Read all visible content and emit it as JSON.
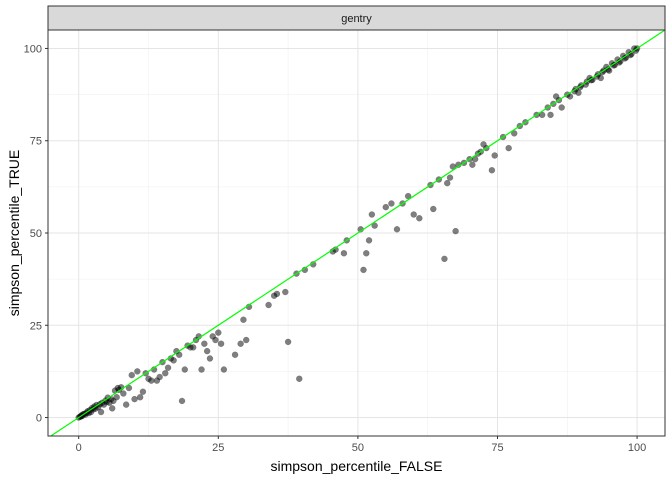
{
  "chart_data": {
    "type": "scatter",
    "facet_label": "gentry",
    "xlabel": "simpson_percentile_FALSE",
    "ylabel": "simpson_percentile_TRUE",
    "xlim": [
      -5.5,
      105
    ],
    "ylim": [
      -5,
      105
    ],
    "x_ticks": [
      0,
      25,
      50,
      75,
      100
    ],
    "y_ticks": [
      0,
      25,
      50,
      75,
      100
    ],
    "x_tick_labels": [
      "0",
      "25",
      "50",
      "75",
      "100"
    ],
    "y_tick_labels": [
      "0",
      "25",
      "50",
      "75",
      "100"
    ],
    "grid": true,
    "reference_line": {
      "slope": 1,
      "intercept": 0,
      "color": "#00ff00"
    },
    "point_color": "#000000",
    "point_opacity": 0.5,
    "points": [
      [
        0,
        0
      ],
      [
        0.2,
        0.2
      ],
      [
        0.4,
        0.3
      ],
      [
        0.5,
        0.6
      ],
      [
        0.6,
        0.4
      ],
      [
        0.8,
        0.9
      ],
      [
        1,
        1
      ],
      [
        1.2,
        0.8
      ],
      [
        1.4,
        1.3
      ],
      [
        1.6,
        1.7
      ],
      [
        1.8,
        1.2
      ],
      [
        2,
        2
      ],
      [
        2.2,
        1.5
      ],
      [
        2.4,
        2.6
      ],
      [
        2.6,
        2.2
      ],
      [
        2.8,
        3
      ],
      [
        3,
        2.4
      ],
      [
        3.2,
        3.4
      ],
      [
        3.5,
        2.8
      ],
      [
        3.8,
        3.6
      ],
      [
        4,
        1.5
      ],
      [
        4.2,
        4
      ],
      [
        4.5,
        3.5
      ],
      [
        4.8,
        4.6
      ],
      [
        5,
        4.2
      ],
      [
        5.2,
        5.4
      ],
      [
        5.5,
        4
      ],
      [
        5.8,
        5
      ],
      [
        6,
        2.5
      ],
      [
        6.2,
        4.5
      ],
      [
        6.5,
        7.3
      ],
      [
        6.8,
        5.5
      ],
      [
        7,
        8
      ],
      [
        7.2,
        7.5
      ],
      [
        7.6,
        8.2
      ],
      [
        8,
        6.5
      ],
      [
        8.5,
        3.5
      ],
      [
        9,
        8
      ],
      [
        9.5,
        11.5
      ],
      [
        10,
        5
      ],
      [
        10.5,
        12.5
      ],
      [
        11,
        5.5
      ],
      [
        11.5,
        7
      ],
      [
        12,
        12
      ],
      [
        12.5,
        10.5
      ],
      [
        13,
        10
      ],
      [
        13.5,
        13
      ],
      [
        14,
        10
      ],
      [
        14.5,
        11
      ],
      [
        15,
        15
      ],
      [
        15.5,
        12
      ],
      [
        16,
        13.5
      ],
      [
        16.5,
        16
      ],
      [
        17,
        15.5
      ],
      [
        17.5,
        18
      ],
      [
        18,
        17
      ],
      [
        18.5,
        4.5
      ],
      [
        19,
        13
      ],
      [
        19.5,
        19.5
      ],
      [
        20,
        19
      ],
      [
        20.5,
        19
      ],
      [
        21,
        21
      ],
      [
        21.5,
        22
      ],
      [
        22,
        13
      ],
      [
        22.5,
        20
      ],
      [
        23,
        18
      ],
      [
        23.5,
        16
      ],
      [
        24,
        22
      ],
      [
        24.5,
        21
      ],
      [
        25,
        23
      ],
      [
        25.5,
        20
      ],
      [
        26,
        13
      ],
      [
        28,
        17
      ],
      [
        29,
        20
      ],
      [
        29.5,
        26.5
      ],
      [
        30,
        21
      ],
      [
        30.5,
        30
      ],
      [
        34,
        30.5
      ],
      [
        35,
        33
      ],
      [
        35.5,
        33.5
      ],
      [
        37,
        34
      ],
      [
        37.5,
        20.5
      ],
      [
        39,
        39
      ],
      [
        39.5,
        10.5
      ],
      [
        40.5,
        40
      ],
      [
        42,
        41.5
      ],
      [
        45.5,
        45
      ],
      [
        46,
        45.5
      ],
      [
        47.5,
        44.5
      ],
      [
        48,
        48
      ],
      [
        50.5,
        51
      ],
      [
        51,
        40
      ],
      [
        51.5,
        44.5
      ],
      [
        52,
        48
      ],
      [
        52.5,
        55
      ],
      [
        53,
        52
      ],
      [
        55,
        57
      ],
      [
        56,
        58
      ],
      [
        57,
        51
      ],
      [
        58,
        58
      ],
      [
        59,
        60
      ],
      [
        60,
        55
      ],
      [
        61,
        54
      ],
      [
        63,
        63
      ],
      [
        63.5,
        56.5
      ],
      [
        64.5,
        64.5
      ],
      [
        65.5,
        43
      ],
      [
        66,
        63.5
      ],
      [
        66.5,
        65
      ],
      [
        67,
        68
      ],
      [
        67.5,
        50.5
      ],
      [
        68,
        68.5
      ],
      [
        69,
        69
      ],
      [
        70,
        70
      ],
      [
        70.5,
        68.5
      ],
      [
        71,
        70
      ],
      [
        71.5,
        71.5
      ],
      [
        72,
        72
      ],
      [
        72.5,
        74
      ],
      [
        73,
        73
      ],
      [
        74,
        67
      ],
      [
        74.5,
        71
      ],
      [
        76,
        76
      ],
      [
        77,
        73
      ],
      [
        78,
        77
      ],
      [
        79,
        79
      ],
      [
        80,
        80
      ],
      [
        82,
        82
      ],
      [
        83,
        82
      ],
      [
        84,
        84
      ],
      [
        84.5,
        82
      ],
      [
        85,
        85
      ],
      [
        85.5,
        87
      ],
      [
        86,
        86
      ],
      [
        86.5,
        84
      ],
      [
        87.5,
        87.5
      ],
      [
        88,
        87
      ],
      [
        89,
        89
      ],
      [
        89.5,
        88
      ],
      [
        90,
        90
      ],
      [
        91,
        91
      ],
      [
        91.5,
        92
      ],
      [
        92,
        91.5
      ],
      [
        93,
        93
      ],
      [
        93.5,
        92
      ],
      [
        94,
        94
      ],
      [
        94.5,
        95
      ],
      [
        95,
        94
      ],
      [
        95.5,
        96
      ],
      [
        96,
        95.5
      ],
      [
        96.5,
        97
      ],
      [
        97,
        96.5
      ],
      [
        97.5,
        98
      ],
      [
        98,
        97.5
      ],
      [
        98.5,
        99
      ],
      [
        99,
        98.5
      ],
      [
        99.5,
        100
      ],
      [
        100,
        100
      ],
      [
        99.8,
        99.4
      ],
      [
        98.8,
        98.2
      ],
      [
        97.8,
        97.3
      ],
      [
        96.8,
        96.2
      ],
      [
        95.8,
        95.4
      ],
      [
        94.8,
        94.3
      ],
      [
        93.8,
        93.6
      ],
      [
        92.8,
        92.4
      ],
      [
        91.8,
        91.4
      ],
      [
        90.8,
        90.2
      ],
      [
        89.8,
        89.5
      ],
      [
        88.8,
        88.4
      ]
    ]
  }
}
